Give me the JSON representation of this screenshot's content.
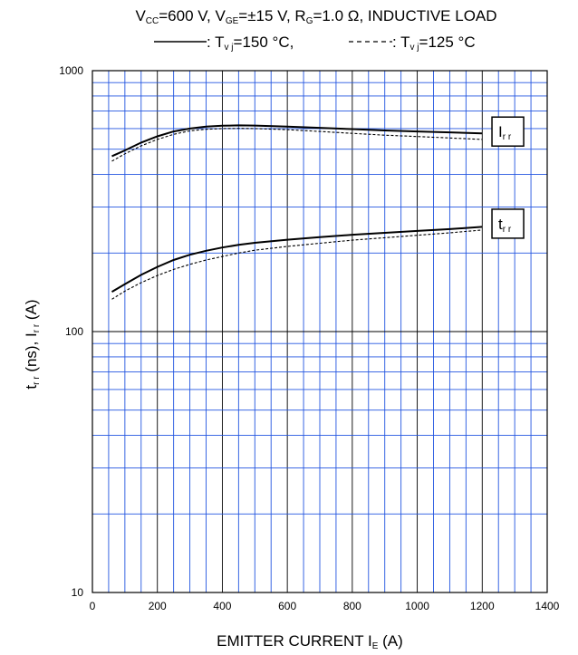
{
  "chart_data": {
    "type": "line",
    "title": {
      "line1": [
        {
          "t": "V"
        },
        {
          "t": "CC",
          "sub": true
        },
        {
          "t": "=600 V, V"
        },
        {
          "t": "GE",
          "sub": true
        },
        {
          "t": "=±15 V, R"
        },
        {
          "t": "G",
          "sub": true
        },
        {
          "t": "=1.0 Ω, INDUCTIVE LOAD"
        }
      ],
      "solid_legend": [
        {
          "t": ": T"
        },
        {
          "t": "v j",
          "sub": true
        },
        {
          "t": "=150 °C, "
        }
      ],
      "dash_legend": [
        {
          "t": ": T"
        },
        {
          "t": "v j",
          "sub": true
        },
        {
          "t": "=125 °C"
        }
      ]
    },
    "xlabel": [
      {
        "t": "EMITTER CURRENT   I"
      },
      {
        "t": "E",
        "sub": true
      },
      {
        "t": "    (A)"
      }
    ],
    "ylabel": [
      {
        "t": "t"
      },
      {
        "t": "r r",
        "sub": true
      },
      {
        "t": "   (ns), I"
      },
      {
        "t": "r r",
        "sub": true
      },
      {
        "t": "   (A)"
      }
    ],
    "xlim": [
      0,
      1400
    ],
    "ylim": [
      10,
      1000
    ],
    "yscale": "log",
    "x_ticks": [
      0,
      200,
      400,
      600,
      800,
      1000,
      1200,
      1400
    ],
    "y_ticks": [
      10,
      100,
      1000
    ],
    "grid": true,
    "series": [
      {
        "name": "Irr",
        "temp": "150",
        "style": "solid",
        "x": [
          60,
          100,
          150,
          200,
          250,
          300,
          350,
          400,
          450,
          500,
          600,
          700,
          800,
          900,
          1000,
          1100,
          1200
        ],
        "y": [
          470,
          495,
          530,
          560,
          585,
          600,
          610,
          615,
          617,
          616,
          610,
          604,
          597,
          590,
          585,
          580,
          575
        ]
      },
      {
        "name": "Irr",
        "temp": "125",
        "style": "dashed",
        "x": [
          60,
          100,
          150,
          200,
          250,
          300,
          350,
          400,
          450,
          500,
          600,
          700,
          800,
          900,
          1000,
          1100,
          1200
        ],
        "y": [
          450,
          480,
          515,
          545,
          570,
          588,
          596,
          600,
          601,
          600,
          594,
          585,
          575,
          566,
          559,
          552,
          545
        ]
      },
      {
        "name": "trr",
        "temp": "150",
        "style": "solid",
        "x": [
          60,
          100,
          150,
          200,
          250,
          300,
          350,
          400,
          450,
          500,
          600,
          700,
          800,
          900,
          1000,
          1100,
          1200
        ],
        "y": [
          142,
          152,
          165,
          177,
          188,
          197,
          204,
          210,
          215,
          219,
          225,
          230,
          235,
          239,
          243,
          247,
          252
        ]
      },
      {
        "name": "trr",
        "temp": "125",
        "style": "dashed",
        "x": [
          60,
          100,
          150,
          200,
          250,
          300,
          350,
          400,
          450,
          500,
          600,
          700,
          800,
          900,
          1000,
          1100,
          1200
        ],
        "y": [
          133,
          143,
          154,
          164,
          173,
          181,
          188,
          194,
          200,
          205,
          212,
          218,
          224,
          229,
          234,
          239,
          245
        ]
      }
    ],
    "annotations": [
      {
        "label": [
          {
            "t": "I"
          },
          {
            "t": "r r",
            "sub": true
          }
        ],
        "x": 1230,
        "y": 575
      },
      {
        "label": [
          {
            "t": "t"
          },
          {
            "t": "r r",
            "sub": true
          }
        ],
        "x": 1230,
        "y": 255
      }
    ]
  }
}
